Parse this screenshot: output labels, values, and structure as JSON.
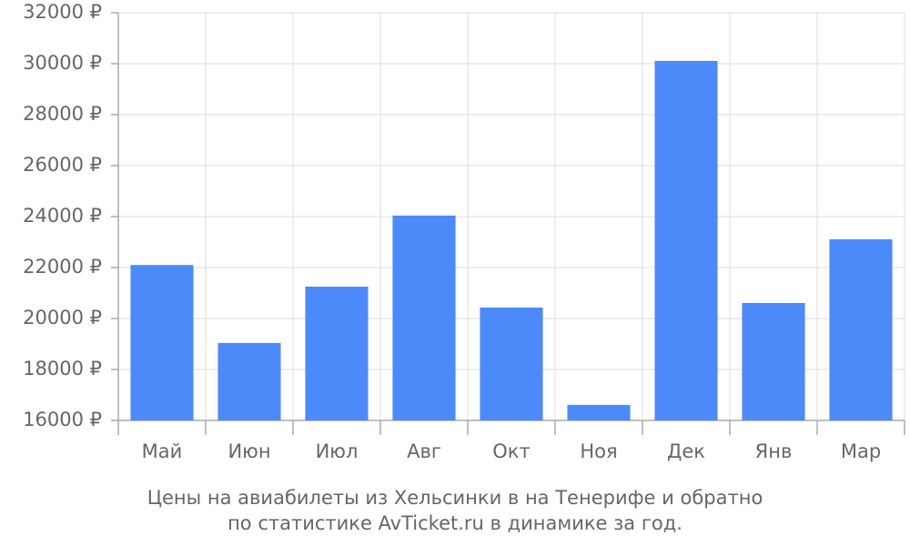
{
  "chart_data": {
    "type": "bar",
    "title_lines": [
      "Цены на авиабилеты из Хельсинки в на Тенерифе и обратно",
      "по статистике AvTicket.ru в динамике за год."
    ],
    "categories": [
      "Май",
      "Июн",
      "Июл",
      "Авг",
      "Окт",
      "Ноя",
      "Дек",
      "Янв",
      "Мар"
    ],
    "values": [
      22100,
      19040,
      21250,
      24040,
      20430,
      16610,
      30110,
      20610,
      23110
    ],
    "color": "#4d8af9",
    "ylim": [
      16000,
      32000
    ],
    "yticks": [
      {
        "value": 16000,
        "label": "16000 ₽"
      },
      {
        "value": 18000,
        "label": "18000 ₽"
      },
      {
        "value": 20000,
        "label": "20000 ₽"
      },
      {
        "value": 22000,
        "label": "22000 ₽"
      },
      {
        "value": 24000,
        "label": "24000 ₽"
      },
      {
        "value": 26000,
        "label": "26000 ₽"
      },
      {
        "value": 28000,
        "label": "28000 ₽"
      },
      {
        "value": 30000,
        "label": "30000 ₽"
      },
      {
        "value": 32000,
        "label": "32000 ₽"
      }
    ],
    "grid": true
  }
}
